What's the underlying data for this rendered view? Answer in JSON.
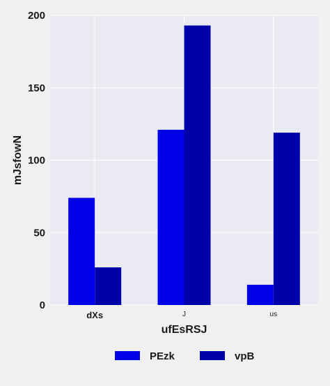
{
  "chart_data": {
    "type": "bar",
    "categories": [
      "dXs",
      "J",
      "us"
    ],
    "category_label_styles": [
      "bold",
      "small",
      "small"
    ],
    "series": [
      {
        "name": "PEzk",
        "values": [
          74,
          121,
          14
        ],
        "color": "#0000e6"
      },
      {
        "name": "vpB",
        "values": [
          26,
          193,
          119
        ],
        "color": "#0000aa"
      }
    ],
    "xlabel": "ufEsRSJ",
    "ylabel": "mJsfowN",
    "ylim": [
      0,
      200
    ],
    "yticks": [
      "0",
      "50",
      "100",
      "150",
      "200"
    ],
    "ytick_values": [
      0,
      50,
      100,
      150,
      200
    ],
    "grid": true,
    "legend_position": "bottom-center",
    "plot_background": "#eaeaf2",
    "page_background": "#f0f0f0"
  }
}
